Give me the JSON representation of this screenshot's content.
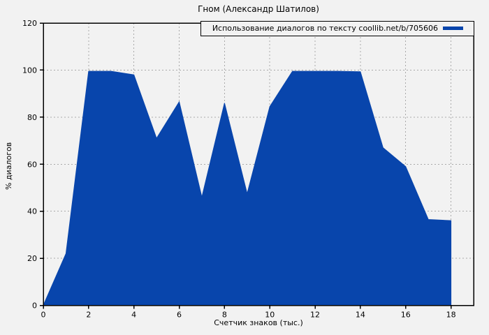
{
  "chart_data": {
    "type": "area",
    "title": "Гном (Александр Шатилов)",
    "legend_label": "Использование диалогов по тексту coollib.net/b/705606",
    "legend_position": "top-right",
    "xlabel": "Счетчик знаков (тыс.)",
    "ylabel": "% диалогов",
    "x": [
      0,
      1,
      2,
      3,
      4,
      5,
      6,
      7,
      8,
      9,
      10,
      11,
      12,
      13,
      14,
      15,
      16,
      17,
      18
    ],
    "values": [
      0,
      22,
      99.5,
      99.5,
      98,
      71,
      86.5,
      46,
      86,
      47.5,
      84.5,
      99.5,
      99.5,
      99.5,
      99.3,
      67,
      59,
      36.5,
      36
    ],
    "xlim": [
      0,
      19
    ],
    "ylim": [
      0,
      120
    ],
    "xticks": [
      0,
      2,
      4,
      6,
      8,
      10,
      12,
      14,
      16,
      18
    ],
    "yticks": [
      0,
      20,
      40,
      60,
      80,
      100,
      120
    ],
    "grid": true,
    "colors": {
      "fill": "#0845ac",
      "background": "#f2f2f2",
      "grid": "#a9a9a9",
      "axis": "#000000",
      "text": "#000000"
    }
  }
}
